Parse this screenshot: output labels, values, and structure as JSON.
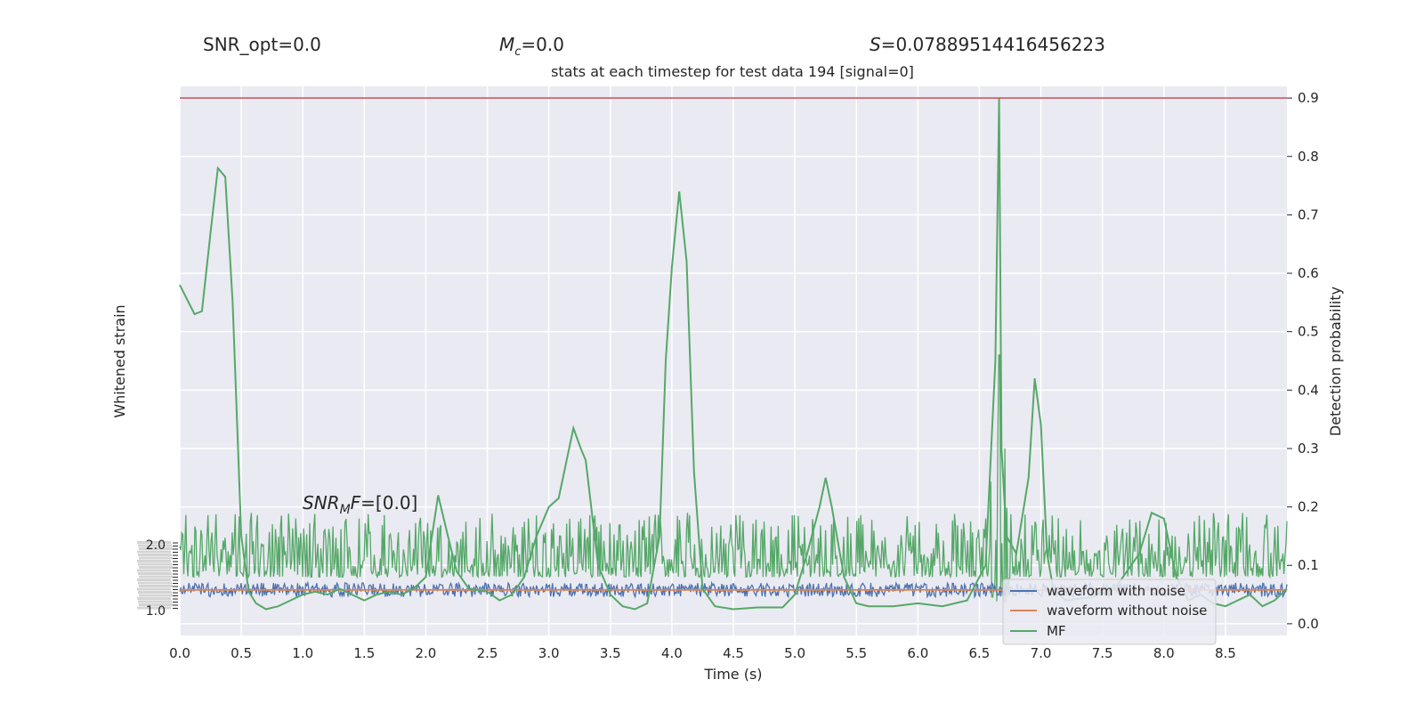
{
  "header": {
    "snr_opt_label": "SNR_opt=0.0",
    "mc_symbol": "M",
    "mc_sub": "c",
    "mc_value": "=0.0",
    "s_symbol": "S",
    "s_value": "=0.07889514416456223"
  },
  "chart_data": {
    "type": "line",
    "title": "stats at each timestep for test data 194 [signal=0]",
    "xlabel": "Time (s)",
    "ylabel_left": "Whitened strain",
    "ylabel_right": "Detection probability",
    "xlim": [
      0.0,
      9.0
    ],
    "ylim_right": [
      -0.02,
      0.92
    ],
    "x_ticks": [
      "0.0",
      "0.5",
      "1.0",
      "1.5",
      "2.0",
      "2.5",
      "3.0",
      "3.5",
      "4.0",
      "4.5",
      "5.0",
      "5.5",
      "6.0",
      "6.5",
      "7.0",
      "7.5",
      "8.0",
      "8.5"
    ],
    "y_ticks_right": [
      "0.0",
      "0.1",
      "0.2",
      "0.3",
      "0.4",
      "0.5",
      "0.6",
      "0.7",
      "0.8",
      "0.9"
    ],
    "left_ticks_visible": [
      "2.0",
      "1.0"
    ],
    "threshold": 0.9,
    "snr_mf_annotation": {
      "symbol": "SNR",
      "sub": "M",
      "tail": "F",
      "value": "=[0.0]"
    },
    "legend_position": "lower-right",
    "series": [
      {
        "name": "waveform with noise",
        "color": "#4c72b0",
        "kind": "noise",
        "center": 0.058,
        "amplitude": 0.012
      },
      {
        "name": "waveform without noise",
        "color": "#dd8452",
        "kind": "flat",
        "value": 0.058
      },
      {
        "name": "MF",
        "color": "#55a868",
        "kind": "noise",
        "center": 0.11,
        "amplitude": 0.05
      },
      {
        "name": "",
        "color": "#55a868",
        "kind": "probability",
        "x": [
          0.0,
          0.12,
          0.18,
          0.25,
          0.31,
          0.37,
          0.43,
          0.5,
          0.56,
          0.62,
          0.7,
          0.8,
          0.9,
          1.0,
          1.1,
          1.2,
          1.3,
          1.4,
          1.5,
          1.6,
          1.7,
          1.8,
          1.9,
          2.0,
          2.1,
          2.18,
          2.25,
          2.35,
          2.5,
          2.6,
          2.7,
          2.8,
          2.9,
          3.0,
          3.08,
          3.2,
          3.26,
          3.3,
          3.4,
          3.5,
          3.6,
          3.7,
          3.8,
          3.9,
          3.95,
          4.0,
          4.06,
          4.12,
          4.18,
          4.25,
          4.35,
          4.5,
          4.7,
          4.9,
          5.0,
          5.1,
          5.2,
          5.25,
          5.3,
          5.4,
          5.5,
          5.6,
          5.8,
          6.0,
          6.2,
          6.4,
          6.55,
          6.63,
          6.66,
          6.68,
          6.72,
          6.8,
          6.9,
          6.95,
          7.0,
          7.05,
          7.1,
          7.2,
          7.4,
          7.6,
          7.8,
          7.9,
          8.0,
          8.1,
          8.2,
          8.3,
          8.4,
          8.5,
          8.6,
          8.7,
          8.8,
          8.9,
          9.0
        ],
        "y": [
          0.58,
          0.53,
          0.535,
          0.67,
          0.78,
          0.765,
          0.55,
          0.15,
          0.055,
          0.035,
          0.025,
          0.03,
          0.04,
          0.05,
          0.055,
          0.05,
          0.06,
          0.05,
          0.04,
          0.05,
          0.055,
          0.05,
          0.06,
          0.08,
          0.22,
          0.15,
          0.09,
          0.06,
          0.055,
          0.04,
          0.05,
          0.08,
          0.15,
          0.2,
          0.215,
          0.335,
          0.3,
          0.28,
          0.1,
          0.05,
          0.03,
          0.025,
          0.035,
          0.15,
          0.45,
          0.61,
          0.74,
          0.62,
          0.26,
          0.06,
          0.03,
          0.025,
          0.028,
          0.028,
          0.05,
          0.12,
          0.2,
          0.25,
          0.2,
          0.08,
          0.035,
          0.03,
          0.03,
          0.035,
          0.03,
          0.04,
          0.1,
          0.45,
          0.9,
          0.3,
          0.15,
          0.12,
          0.25,
          0.42,
          0.34,
          0.12,
          0.06,
          0.04,
          0.045,
          0.06,
          0.12,
          0.19,
          0.18,
          0.08,
          0.04,
          0.05,
          0.035,
          0.03,
          0.04,
          0.05,
          0.03,
          0.04,
          0.06
        ]
      }
    ]
  }
}
